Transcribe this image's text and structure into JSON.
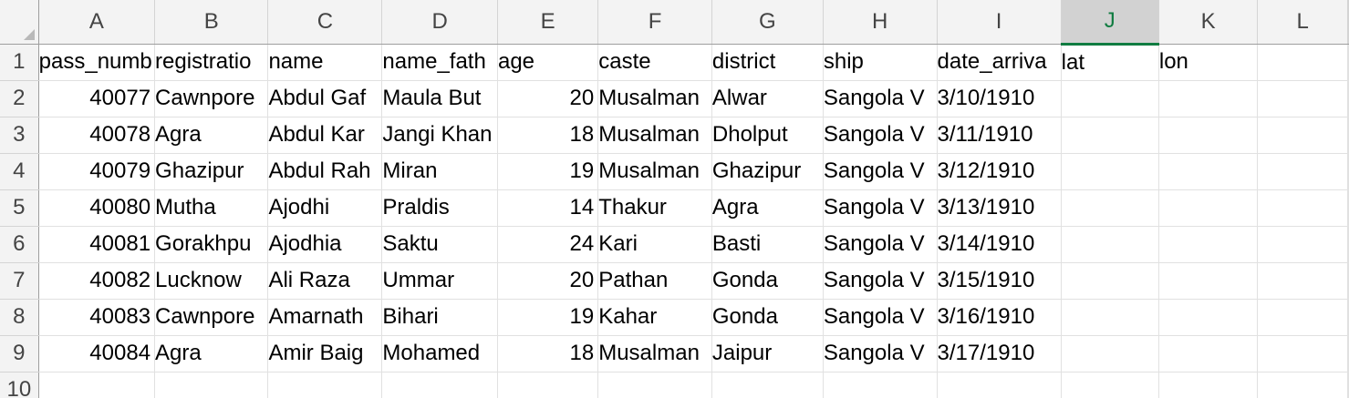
{
  "columns": [
    "A",
    "B",
    "C",
    "D",
    "E",
    "F",
    "G",
    "H",
    "I",
    "J",
    "K",
    "L"
  ],
  "selected_column": "J",
  "row_numbers": [
    "1",
    "2",
    "3",
    "4",
    "5",
    "6",
    "7",
    "8",
    "9",
    "10"
  ],
  "rows": [
    [
      "pass_numb",
      "registratio",
      "name",
      "name_fath",
      "age",
      "caste",
      "district",
      "ship",
      "date_arriva",
      "lat",
      "lon",
      ""
    ],
    [
      "40077",
      "Cawnpore",
      "Abdul Gaf",
      "Maula But",
      "20",
      "Musalman",
      "Alwar",
      "Sangola V",
      "3/10/1910",
      "",
      "",
      ""
    ],
    [
      "40078",
      "Agra",
      "Abdul Kar",
      "Jangi Khan",
      "18",
      "Musalman",
      "Dholput",
      "Sangola V",
      "3/11/1910",
      "",
      "",
      ""
    ],
    [
      "40079",
      "Ghazipur",
      "Abdul Rah",
      "Miran",
      "19",
      "Musalman",
      "Ghazipur",
      "Sangola V",
      "3/12/1910",
      "",
      "",
      ""
    ],
    [
      "40080",
      "Mutha",
      "Ajodhi",
      "Praldis",
      "14",
      "Thakur",
      "Agra",
      "Sangola V",
      "3/13/1910",
      "",
      "",
      ""
    ],
    [
      "40081",
      "Gorakhpu",
      "Ajodhia",
      "Saktu",
      "24",
      "Kari",
      "Basti",
      "Sangola V",
      "3/14/1910",
      "",
      "",
      ""
    ],
    [
      "40082",
      "Lucknow",
      "Ali Raza",
      "Ummar",
      "20",
      "Pathan",
      "Gonda",
      "Sangola V",
      "3/15/1910",
      "",
      "",
      ""
    ],
    [
      "40083",
      "Cawnpore",
      "Amarnath",
      "Bihari",
      "19",
      "Kahar",
      "Gonda",
      "Sangola V",
      "3/16/1910",
      "",
      "",
      ""
    ],
    [
      "40084",
      "Agra",
      "Amir Baig",
      "Mohamed",
      "18",
      "Musalman",
      "Jaipur",
      "Sangola V",
      "3/17/1910",
      "",
      "",
      ""
    ],
    [
      "",
      "",
      "",
      "",
      "",
      "",
      "",
      "",
      "",
      "",
      "",
      ""
    ]
  ],
  "numeric_columns": [
    "A",
    "E"
  ],
  "colors": {
    "header_bg": "#f3f3f3",
    "selected_header_bg": "#d2d2d2",
    "selected_accent": "#107c41",
    "grid_line": "#e1e1e1"
  }
}
